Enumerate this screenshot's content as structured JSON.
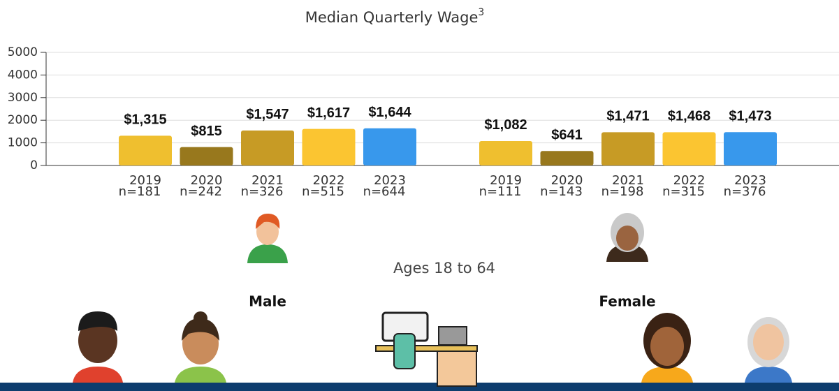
{
  "chart_data": {
    "type": "grouped-bar",
    "title": "Median Quarterly Wage",
    "title_footnote": "3",
    "subtitle": "Ages 18 to 64",
    "ylim": [
      0,
      5000
    ],
    "yticks": [
      0,
      1000,
      2000,
      3000,
      4000,
      5000
    ],
    "grid": true,
    "colors": [
      "#efbf2f",
      "#98781d",
      "#c79b25",
      "#fbc531",
      "#3898ec"
    ],
    "groups": [
      {
        "name": "Male",
        "categories": [
          "2019",
          "2020",
          "2021",
          "2022",
          "2023"
        ],
        "n_labels": [
          "n=181",
          "n=242",
          "n=326",
          "n=515",
          "n=644"
        ],
        "values": [
          1315,
          815,
          1547,
          1617,
          1644
        ],
        "value_labels": [
          "$1,315",
          "$815",
          "$1,547",
          "$1,617",
          "$1,644"
        ]
      },
      {
        "name": "Female",
        "categories": [
          "2019",
          "2020",
          "2021",
          "2022",
          "2023"
        ],
        "n_labels": [
          "n=111",
          "n=143",
          "n=198",
          "n=315",
          "n=376"
        ],
        "values": [
          1082,
          641,
          1471,
          1468,
          1473
        ],
        "value_labels": [
          "$1,082",
          "$641",
          "$1,471",
          "$1,468",
          "$1,473"
        ]
      }
    ]
  }
}
